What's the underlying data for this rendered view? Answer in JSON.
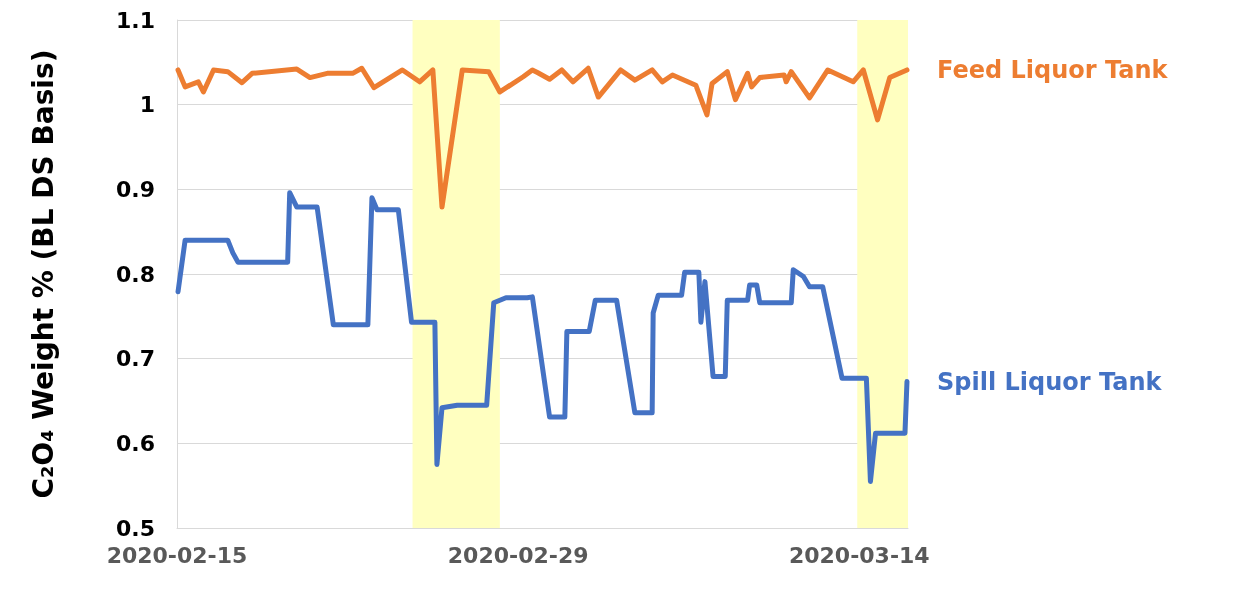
{
  "chart_data": {
    "type": "line",
    "ylabel": "C₂O₄ Weight % (BL DS Basis)",
    "xlim": [
      "2020-02-15",
      "2020-03-16"
    ],
    "xticks": [
      "2020-02-15",
      "2020-02-29",
      "2020-03-14"
    ],
    "ylim": [
      0.5,
      1.1
    ],
    "yticks": [
      0.5,
      0.6,
      0.7,
      0.8,
      0.9,
      1,
      1.1
    ],
    "grid": "y",
    "legend": false,
    "marker": "none",
    "line_style": "solid",
    "bands": [
      {
        "axis": "x",
        "from": "2020-02-24T16:00",
        "to": "2020-02-28T06:00",
        "color": "#ffffc0"
      },
      {
        "axis": "x",
        "from": "2020-03-13T22:00",
        "to": "2020-03-16",
        "color": "#ffffc0"
      }
    ],
    "series": [
      {
        "name": "Feed Liquor Tank",
        "color": "#ed7d31",
        "x": [
          "2020-02-15T01:00",
          "2020-02-15T08:00",
          "2020-02-15T21:00",
          "2020-02-16T02:00",
          "2020-02-16T12:00",
          "2020-02-17T02:00",
          "2020-02-17T16:00",
          "2020-02-18T02:00",
          "2020-02-19T22:00",
          "2020-02-20T11:00",
          "2020-02-21T04:00",
          "2020-02-22T05:00",
          "2020-02-22T14:00",
          "2020-02-23T02:00",
          "2020-02-24T06:00",
          "2020-02-24T23:00",
          "2020-02-25T12:00",
          "2020-02-25T21:00",
          "2020-02-26T17:00",
          "2020-02-27T19:00",
          "2020-02-28T06:00",
          "2020-02-29T05:00",
          "2020-02-29T14:00",
          "2020-02-29T19:00",
          "2020-03-01T07:00",
          "2020-03-01T19:00",
          "2020-03-02T06:00",
          "2020-03-02T21:00",
          "2020-03-03T07:00",
          "2020-03-04T05:00",
          "2020-03-04T19:00",
          "2020-03-05T12:00",
          "2020-03-05T22:00",
          "2020-03-06T08:00",
          "2020-03-07T07:00",
          "2020-03-07T18:00",
          "2020-03-07T23:00",
          "2020-03-08T14:00",
          "2020-03-08T22:00",
          "2020-03-09T10:00",
          "2020-03-09T14:00",
          "2020-03-09T22:00",
          "2020-03-10T22:00",
          "2020-03-11T00:00",
          "2020-03-11T05:00",
          "2020-03-11T23:00",
          "2020-03-12T17:00",
          "2020-03-13T18:00",
          "2020-03-14T04:00",
          "2020-03-14T18:00",
          "2020-03-15T06:00",
          "2020-03-15T23:00"
        ],
        "values": [
          1.041,
          1.021,
          1.027,
          1.015,
          1.041,
          1.039,
          1.026,
          1.037,
          1.042,
          1.032,
          1.037,
          1.037,
          1.043,
          1.02,
          1.041,
          1.027,
          1.041,
          0.879,
          1.041,
          1.039,
          1.015,
          1.033,
          1.041,
          1.038,
          1.03,
          1.041,
          1.027,
          1.043,
          1.009,
          1.041,
          1.029,
          1.041,
          1.027,
          1.035,
          1.023,
          0.988,
          1.025,
          1.039,
          1.006,
          1.037,
          1.021,
          1.032,
          1.035,
          1.027,
          1.039,
          1.008,
          1.041,
          1.027,
          1.041,
          0.982,
          1.032,
          1.041
        ]
      },
      {
        "name": "Spill Liquor Tank",
        "color": "#4472c4",
        "x": [
          "2020-02-15T01:00",
          "2020-02-15T08:00",
          "2020-02-17T02:00",
          "2020-02-17T07:00",
          "2020-02-17T12:00",
          "2020-02-19T13:00",
          "2020-02-19T15:00",
          "2020-02-19T22:00",
          "2020-02-20T18:00",
          "2020-02-21T10:00",
          "2020-02-22T20:00",
          "2020-02-23T00:00",
          "2020-02-23T05:00",
          "2020-02-24T02:00",
          "2020-02-24T15:00",
          "2020-02-25T14:00",
          "2020-02-25T16:00",
          "2020-02-25T21:00",
          "2020-02-26T12:00",
          "2020-02-27T17:00",
          "2020-02-28T00:00",
          "2020-02-28T12:00",
          "2020-02-29T09:00",
          "2020-02-29T14:00",
          "2020-03-01T07:00",
          "2020-03-01T22:00",
          "2020-03-02T00:00",
          "2020-03-02T22:00",
          "2020-03-03T04:00",
          "2020-03-04T01:00",
          "2020-03-04T19:00",
          "2020-03-05T12:00",
          "2020-03-05T13:00",
          "2020-03-05T18:00",
          "2020-03-06T17:00",
          "2020-03-06T20:00",
          "2020-03-07T10:00",
          "2020-03-07T12:00",
          "2020-03-07T16:00",
          "2020-03-08T00:00",
          "2020-03-08T12:00",
          "2020-03-08T14:00",
          "2020-03-09T10:00",
          "2020-03-09T12:00",
          "2020-03-09T19:00",
          "2020-03-09T22:00",
          "2020-03-11T05:00",
          "2020-03-11T07:00",
          "2020-03-11T17:00",
          "2020-03-11T23:00",
          "2020-03-12T12:00",
          "2020-03-13T07:00",
          "2020-03-14T07:00",
          "2020-03-14T11:00",
          "2020-03-14T16:00",
          "2020-03-15T21:00",
          "2020-03-15T23:00"
        ],
        "values": [
          0.779,
          0.84,
          0.84,
          0.825,
          0.814,
          0.814,
          0.896,
          0.879,
          0.879,
          0.74,
          0.74,
          0.89,
          0.876,
          0.876,
          0.743,
          0.743,
          0.575,
          0.642,
          0.645,
          0.645,
          0.766,
          0.772,
          0.772,
          0.773,
          0.631,
          0.631,
          0.732,
          0.732,
          0.769,
          0.769,
          0.636,
          0.636,
          0.754,
          0.775,
          0.775,
          0.802,
          0.802,
          0.743,
          0.791,
          0.679,
          0.679,
          0.769,
          0.769,
          0.787,
          0.787,
          0.766,
          0.766,
          0.805,
          0.797,
          0.785,
          0.785,
          0.677,
          0.677,
          0.555,
          0.612,
          0.612,
          0.673
        ]
      }
    ]
  }
}
